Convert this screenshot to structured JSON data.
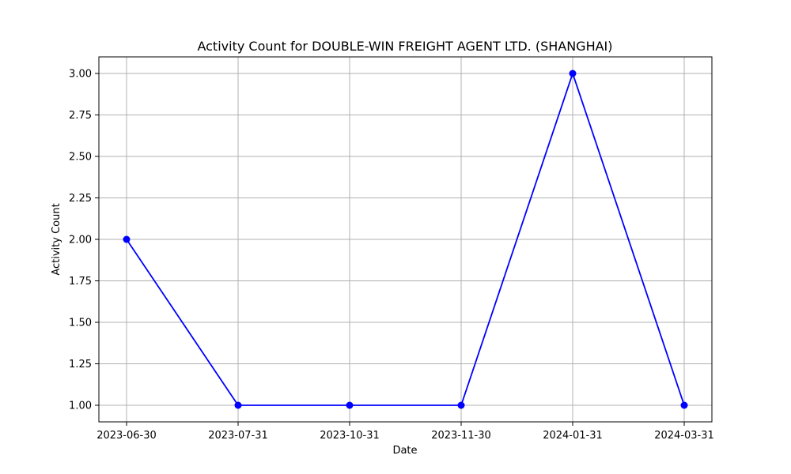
{
  "chart_data": {
    "type": "line",
    "title": "Activity Count for DOUBLE-WIN FREIGHT AGENT LTD. (SHANGHAI)",
    "xlabel": "Date",
    "ylabel": "Activity Count",
    "categories": [
      "2023-06-30",
      "2023-07-31",
      "2023-10-31",
      "2023-11-30",
      "2024-01-31",
      "2024-03-31"
    ],
    "series": [
      {
        "values": [
          2,
          1,
          1,
          1,
          3,
          1
        ],
        "color": "#0000ff",
        "marker": "circle"
      }
    ],
    "ylim": [
      0.9,
      3.1
    ],
    "yticks": [
      "1.00",
      "1.25",
      "1.50",
      "1.75",
      "2.00",
      "2.25",
      "2.50",
      "2.75",
      "3.00"
    ],
    "grid": true
  }
}
